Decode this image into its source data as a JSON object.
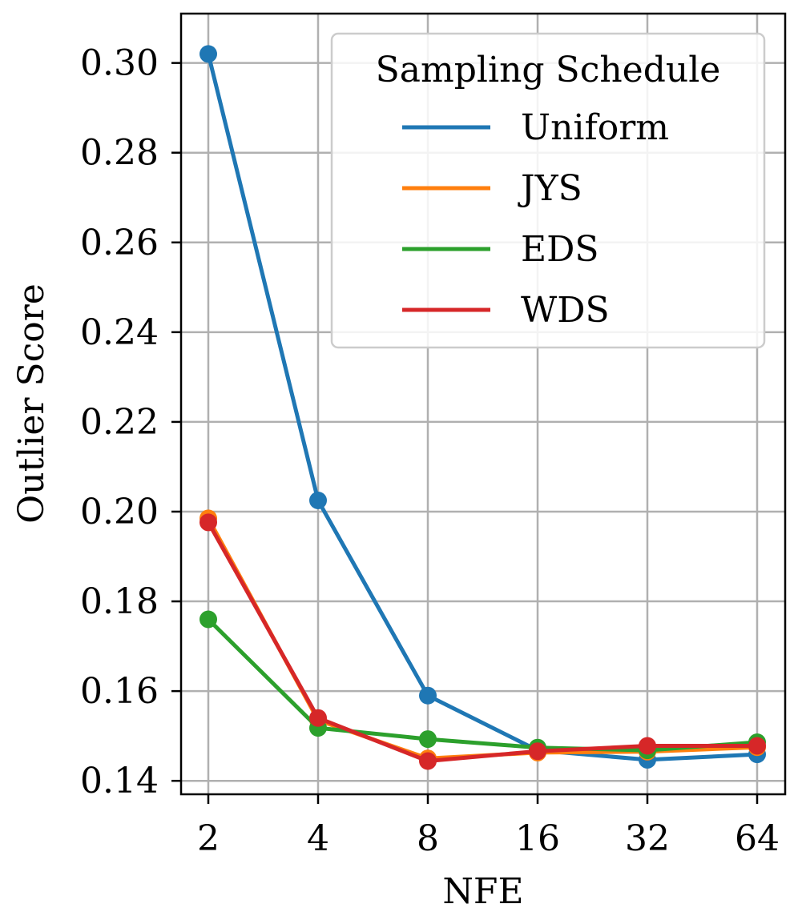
{
  "chart_data": {
    "type": "line",
    "title": "",
    "xlabel": "NFE",
    "ylabel": "Outlier Score",
    "categories": [
      "2",
      "4",
      "8",
      "16",
      "32",
      "64"
    ],
    "ylim": [
      0.137,
      0.311
    ],
    "yticks": [
      "0.14",
      "0.16",
      "0.18",
      "0.20",
      "0.22",
      "0.24",
      "0.26",
      "0.28",
      "0.30"
    ],
    "grid": true,
    "legend": {
      "title": "Sampling Schedule",
      "position": "top-right"
    },
    "series": [
      {
        "name": "Uniform",
        "color": "#1f77b4",
        "values": [
          0.302,
          0.2025,
          0.159,
          0.1468,
          0.1447,
          0.1459
        ]
      },
      {
        "name": "JYS",
        "color": "#ff7f0e",
        "values": [
          0.1985,
          0.1535,
          0.145,
          0.1463,
          0.1465,
          0.1475
        ]
      },
      {
        "name": "EDS",
        "color": "#2ca02c",
        "values": [
          0.176,
          0.1518,
          0.1493,
          0.1474,
          0.1468,
          0.1486
        ]
      },
      {
        "name": "WDS",
        "color": "#d62728",
        "values": [
          0.1976,
          0.154,
          0.1444,
          0.1466,
          0.1478,
          0.1478
        ]
      }
    ]
  }
}
